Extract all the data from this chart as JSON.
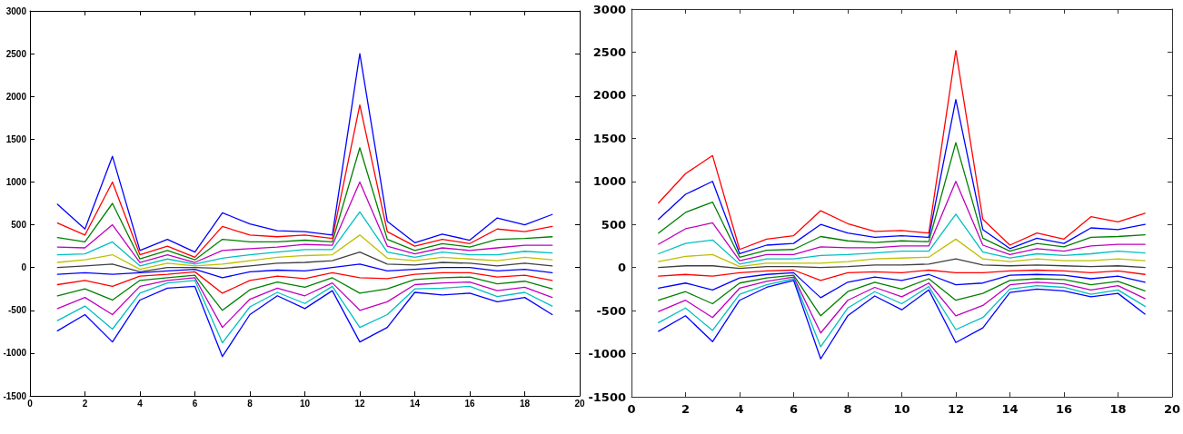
{
  "chart_data": [
    {
      "type": "line",
      "x": [
        1,
        2,
        3,
        4,
        5,
        6,
        7,
        8,
        9,
        10,
        11,
        12,
        13,
        14,
        15,
        16,
        17,
        18,
        19
      ],
      "xlim": [
        0,
        20
      ],
      "xticks": [
        0,
        2,
        4,
        6,
        8,
        10,
        12,
        14,
        16,
        18,
        20
      ],
      "ylim": [
        -1500,
        3000
      ],
      "yticks": [
        -1500,
        -1000,
        -500,
        0,
        500,
        1000,
        1500,
        2000,
        2500,
        3000
      ],
      "series": [
        {
          "color": "#0000ff",
          "values": [
            740,
            450,
            1300,
            200,
            330,
            180,
            640,
            510,
            430,
            420,
            380,
            2500,
            540,
            290,
            390,
            320,
            580,
            500,
            620
          ]
        },
        {
          "color": "#ff0000",
          "values": [
            520,
            380,
            1000,
            150,
            250,
            120,
            480,
            380,
            360,
            380,
            340,
            1900,
            420,
            250,
            330,
            280,
            450,
            420,
            480
          ]
        },
        {
          "color": "#008000",
          "values": [
            350,
            300,
            750,
            100,
            200,
            90,
            330,
            300,
            300,
            320,
            300,
            1400,
            330,
            200,
            280,
            240,
            330,
            340,
            360
          ]
        },
        {
          "color": "#bf00bf",
          "values": [
            240,
            230,
            500,
            60,
            150,
            60,
            200,
            220,
            240,
            270,
            260,
            1000,
            250,
            160,
            230,
            200,
            230,
            260,
            260
          ]
        },
        {
          "color": "#00bfbf",
          "values": [
            150,
            160,
            300,
            20,
            100,
            40,
            110,
            150,
            180,
            210,
            210,
            650,
            180,
            120,
            180,
            150,
            150,
            190,
            170
          ]
        },
        {
          "color": "#bfbf00",
          "values": [
            60,
            90,
            150,
            -20,
            50,
            20,
            40,
            80,
            120,
            140,
            150,
            380,
            110,
            80,
            120,
            100,
            80,
            120,
            90
          ]
        },
        {
          "color": "#404040",
          "values": [
            0,
            20,
            40,
            -50,
            0,
            0,
            -10,
            20,
            50,
            60,
            80,
            180,
            40,
            30,
            60,
            50,
            20,
            50,
            20
          ]
        },
        {
          "color": "#0000ff",
          "values": [
            -80,
            -60,
            -80,
            -60,
            -40,
            -20,
            -120,
            -50,
            -30,
            -40,
            0,
            40,
            -40,
            -20,
            0,
            0,
            -40,
            -20,
            -60
          ]
        },
        {
          "color": "#ff0000",
          "values": [
            -200,
            -150,
            -220,
            -100,
            -80,
            -50,
            -300,
            -150,
            -100,
            -130,
            -60,
            -120,
            -130,
            -80,
            -60,
            -60,
            -110,
            -90,
            -150
          ]
        },
        {
          "color": "#008000",
          "values": [
            -330,
            -250,
            -380,
            -150,
            -120,
            -90,
            -500,
            -260,
            -170,
            -230,
            -120,
            -300,
            -250,
            -140,
            -120,
            -110,
            -190,
            -160,
            -250
          ]
        },
        {
          "color": "#bf00bf",
          "values": [
            -480,
            -350,
            -550,
            -220,
            -150,
            -120,
            -700,
            -370,
            -240,
            -330,
            -180,
            -500,
            -400,
            -200,
            -180,
            -170,
            -270,
            -230,
            -350
          ]
        },
        {
          "color": "#00bfbf",
          "values": [
            -620,
            -450,
            -720,
            -300,
            -180,
            -150,
            -880,
            -460,
            -290,
            -420,
            -220,
            -700,
            -550,
            -250,
            -240,
            -220,
            -340,
            -290,
            -450
          ]
        },
        {
          "color": "#0000ff",
          "values": [
            -740,
            -550,
            -870,
            -380,
            -240,
            -220,
            -1040,
            -550,
            -330,
            -480,
            -270,
            -870,
            -700,
            -290,
            -320,
            -300,
            -400,
            -350,
            -550
          ]
        }
      ]
    },
    {
      "type": "line",
      "x": [
        1,
        2,
        3,
        4,
        5,
        6,
        7,
        8,
        9,
        10,
        11,
        12,
        13,
        14,
        15,
        16,
        17,
        18,
        19
      ],
      "xlim": [
        0,
        20
      ],
      "xticks": [
        0,
        2,
        4,
        6,
        8,
        10,
        12,
        14,
        16,
        18,
        20
      ],
      "ylim": [
        -1500,
        3000
      ],
      "yticks": [
        -1500,
        -1000,
        -500,
        0,
        500,
        1000,
        1500,
        2000,
        2500,
        3000
      ],
      "series": [
        {
          "color": "#ff0000",
          "values": [
            750,
            1090,
            1300,
            210,
            330,
            370,
            660,
            510,
            420,
            430,
            400,
            2520,
            560,
            260,
            400,
            330,
            590,
            530,
            630
          ]
        },
        {
          "color": "#0000ff",
          "values": [
            560,
            850,
            1000,
            160,
            260,
            280,
            500,
            400,
            350,
            370,
            350,
            1950,
            440,
            220,
            340,
            280,
            460,
            440,
            500
          ]
        },
        {
          "color": "#008000",
          "values": [
            400,
            640,
            760,
            120,
            200,
            210,
            360,
            310,
            290,
            310,
            300,
            1450,
            340,
            190,
            280,
            240,
            350,
            360,
            380
          ]
        },
        {
          "color": "#bf00bf",
          "values": [
            270,
            450,
            520,
            80,
            150,
            150,
            240,
            230,
            230,
            250,
            250,
            1000,
            260,
            150,
            220,
            190,
            250,
            270,
            270
          ]
        },
        {
          "color": "#00bfbf",
          "values": [
            160,
            280,
            320,
            40,
            100,
            100,
            140,
            150,
            170,
            190,
            190,
            620,
            180,
            110,
            160,
            140,
            160,
            190,
            170
          ]
        },
        {
          "color": "#bfbf00",
          "values": [
            70,
            130,
            150,
            10,
            50,
            50,
            50,
            70,
            100,
            110,
            120,
            330,
            100,
            70,
            100,
            80,
            80,
            100,
            80
          ]
        },
        {
          "color": "#404040",
          "values": [
            0,
            20,
            20,
            -10,
            10,
            10,
            0,
            10,
            30,
            30,
            40,
            100,
            30,
            20,
            30,
            20,
            10,
            20,
            0
          ]
        },
        {
          "color": "#ff0000",
          "values": [
            -100,
            -80,
            -100,
            -60,
            -40,
            -30,
            -150,
            -60,
            -50,
            -60,
            -30,
            -60,
            -60,
            -40,
            -30,
            -40,
            -60,
            -40,
            -80
          ]
        },
        {
          "color": "#0000ff",
          "values": [
            -240,
            -180,
            -260,
            -120,
            -80,
            -60,
            -350,
            -170,
            -110,
            -150,
            -80,
            -200,
            -180,
            -90,
            -80,
            -90,
            -130,
            -100,
            -170
          ]
        },
        {
          "color": "#008000",
          "values": [
            -380,
            -280,
            -420,
            -180,
            -120,
            -90,
            -560,
            -280,
            -170,
            -250,
            -130,
            -380,
            -300,
            -150,
            -130,
            -140,
            -200,
            -160,
            -270
          ]
        },
        {
          "color": "#bf00bf",
          "values": [
            -510,
            -380,
            -580,
            -240,
            -160,
            -110,
            -760,
            -380,
            -230,
            -340,
            -180,
            -560,
            -440,
            -200,
            -170,
            -190,
            -260,
            -210,
            -360
          ]
        },
        {
          "color": "#00bfbf",
          "values": [
            -640,
            -470,
            -730,
            -310,
            -200,
            -130,
            -920,
            -470,
            -280,
            -420,
            -220,
            -720,
            -580,
            -250,
            -210,
            -230,
            -310,
            -260,
            -450
          ]
        },
        {
          "color": "#0000ff",
          "values": [
            -740,
            -560,
            -860,
            -380,
            -230,
            -150,
            -1060,
            -560,
            -330,
            -490,
            -260,
            -870,
            -700,
            -290,
            -250,
            -270,
            -340,
            -300,
            -540
          ]
        }
      ]
    }
  ]
}
